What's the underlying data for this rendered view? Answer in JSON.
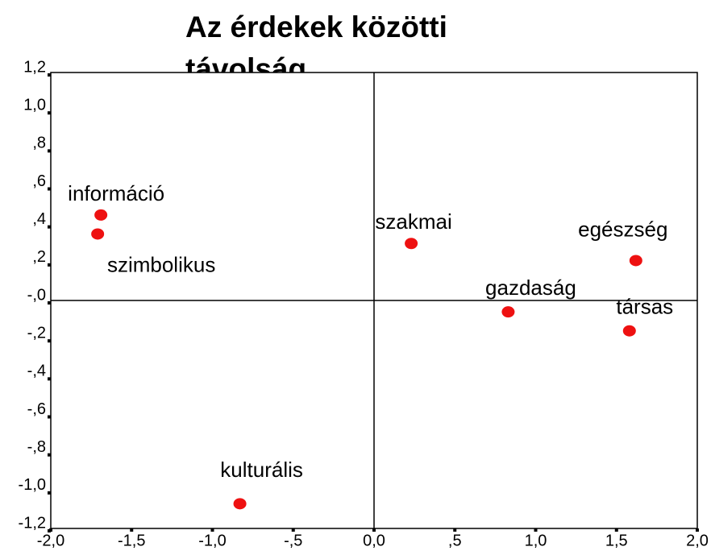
{
  "chart_data": {
    "type": "scatter",
    "title": "Az érdekek közötti távolság",
    "series": [
      {
        "color": "#ee1111",
        "labels": [
          "információ",
          "szimbolikus",
          "szakmai",
          "egészség",
          "gazdaság",
          "társas",
          "kulturális"
        ],
        "x": [
          -1.69,
          -1.71,
          0.23,
          1.62,
          0.83,
          1.58,
          -0.83
        ],
        "values": [
          0.45,
          0.35,
          0.3,
          0.21,
          -0.06,
          -0.16,
          -1.07
        ]
      }
    ],
    "xlim": [
      -2.0,
      2.0
    ],
    "ylim": [
      -1.2,
      1.2
    ],
    "xticks": [
      {
        "value": -2.0,
        "label": "-2,0"
      },
      {
        "value": -1.5,
        "label": "-1,5"
      },
      {
        "value": -1.0,
        "label": "-1,0"
      },
      {
        "value": -0.5,
        "label": "-,5"
      },
      {
        "value": 0,
        "label": "0,0"
      },
      {
        "value": 0.5,
        "label": ",5"
      },
      {
        "value": 1.0,
        "label": "1,0"
      },
      {
        "value": 1.5,
        "label": "1,5"
      },
      {
        "value": 2.0,
        "label": "2,0"
      }
    ],
    "yticks": [
      {
        "value": 1.2,
        "label": "1,2"
      },
      {
        "value": 1.0,
        "label": "1,0"
      },
      {
        "value": 0.8,
        "label": ",8"
      },
      {
        "value": 0.6,
        "label": ",6"
      },
      {
        "value": 0.4,
        "label": ",4"
      },
      {
        "value": 0.2,
        "label": ",2"
      },
      {
        "value": 0,
        "label": "-,0"
      },
      {
        "value": -0.2,
        "label": "-,2"
      },
      {
        "value": -0.4,
        "label": "-,4"
      },
      {
        "value": -0.6,
        "label": "-,6"
      },
      {
        "value": -0.8,
        "label": "-,8"
      },
      {
        "value": -1.0,
        "label": "-1,0"
      },
      {
        "value": -1.2,
        "label": "-1,2"
      }
    ]
  }
}
